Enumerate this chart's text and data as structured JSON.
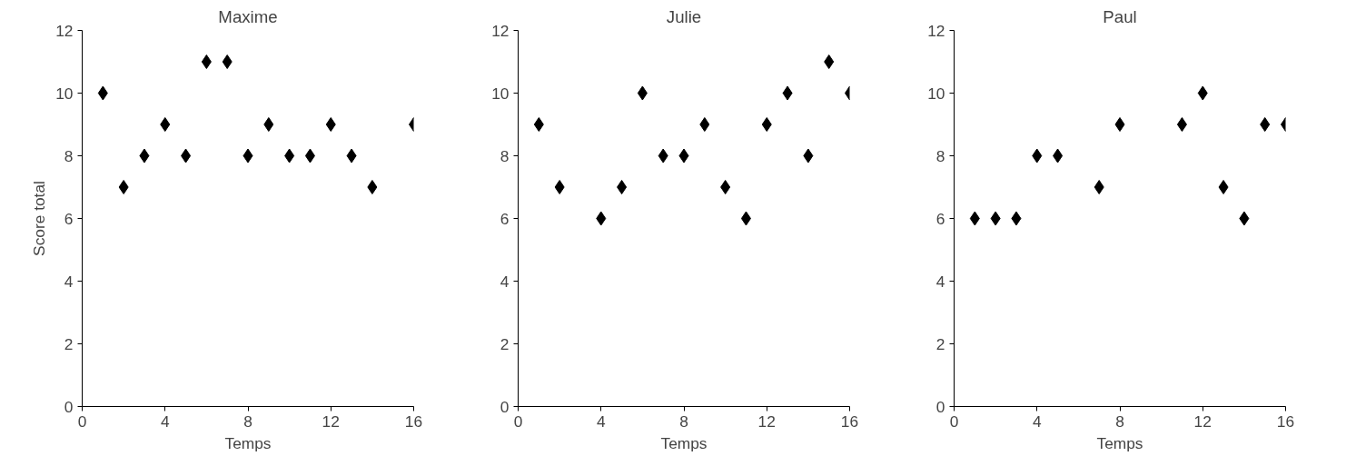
{
  "chart_data": [
    {
      "type": "scatter",
      "title": "Maxime",
      "xlabel": "Temps",
      "ylabel": "Score total",
      "marker": "diamond",
      "grid": false,
      "xlim": [
        0,
        16
      ],
      "ylim": [
        0,
        12
      ],
      "xticks": [
        0,
        4,
        8,
        12,
        16
      ],
      "yticks": [
        0,
        2,
        4,
        6,
        8,
        10,
        12
      ],
      "series": [
        {
          "color": "#000000",
          "x": [
            1,
            2,
            3,
            4,
            5,
            6,
            7,
            8,
            9,
            10,
            11,
            12,
            13,
            14,
            16
          ],
          "values": [
            10,
            7,
            8,
            9,
            8,
            11,
            11,
            8,
            9,
            8,
            8,
            9,
            8,
            7,
            9
          ]
        }
      ]
    },
    {
      "type": "scatter",
      "title": "Julie",
      "xlabel": "Temps",
      "marker": "diamond",
      "grid": false,
      "xlim": [
        0,
        16
      ],
      "ylim": [
        0,
        12
      ],
      "xticks": [
        0,
        4,
        8,
        12,
        16
      ],
      "yticks": [
        0,
        2,
        4,
        6,
        8,
        10,
        12
      ],
      "series": [
        {
          "color": "#000000",
          "x": [
            1,
            2,
            4,
            5,
            6,
            7,
            8,
            9,
            10,
            11,
            12,
            13,
            14,
            15,
            16
          ],
          "values": [
            9,
            7,
            6,
            7,
            10,
            8,
            8,
            9,
            7,
            6,
            9,
            10,
            8,
            11,
            10
          ]
        }
      ]
    },
    {
      "type": "scatter",
      "title": "Paul",
      "xlabel": "Temps",
      "marker": "diamond",
      "grid": false,
      "xlim": [
        0,
        16
      ],
      "ylim": [
        0,
        12
      ],
      "xticks": [
        0,
        4,
        8,
        12,
        16
      ],
      "yticks": [
        0,
        2,
        4,
        6,
        8,
        10,
        12
      ],
      "series": [
        {
          "color": "#000000",
          "x": [
            1,
            2,
            3,
            4,
            5,
            7,
            8,
            11,
            12,
            13,
            14,
            15,
            16
          ],
          "values": [
            6,
            6,
            6,
            8,
            8,
            7,
            9,
            9,
            10,
            7,
            6,
            9,
            9
          ]
        }
      ]
    }
  ]
}
